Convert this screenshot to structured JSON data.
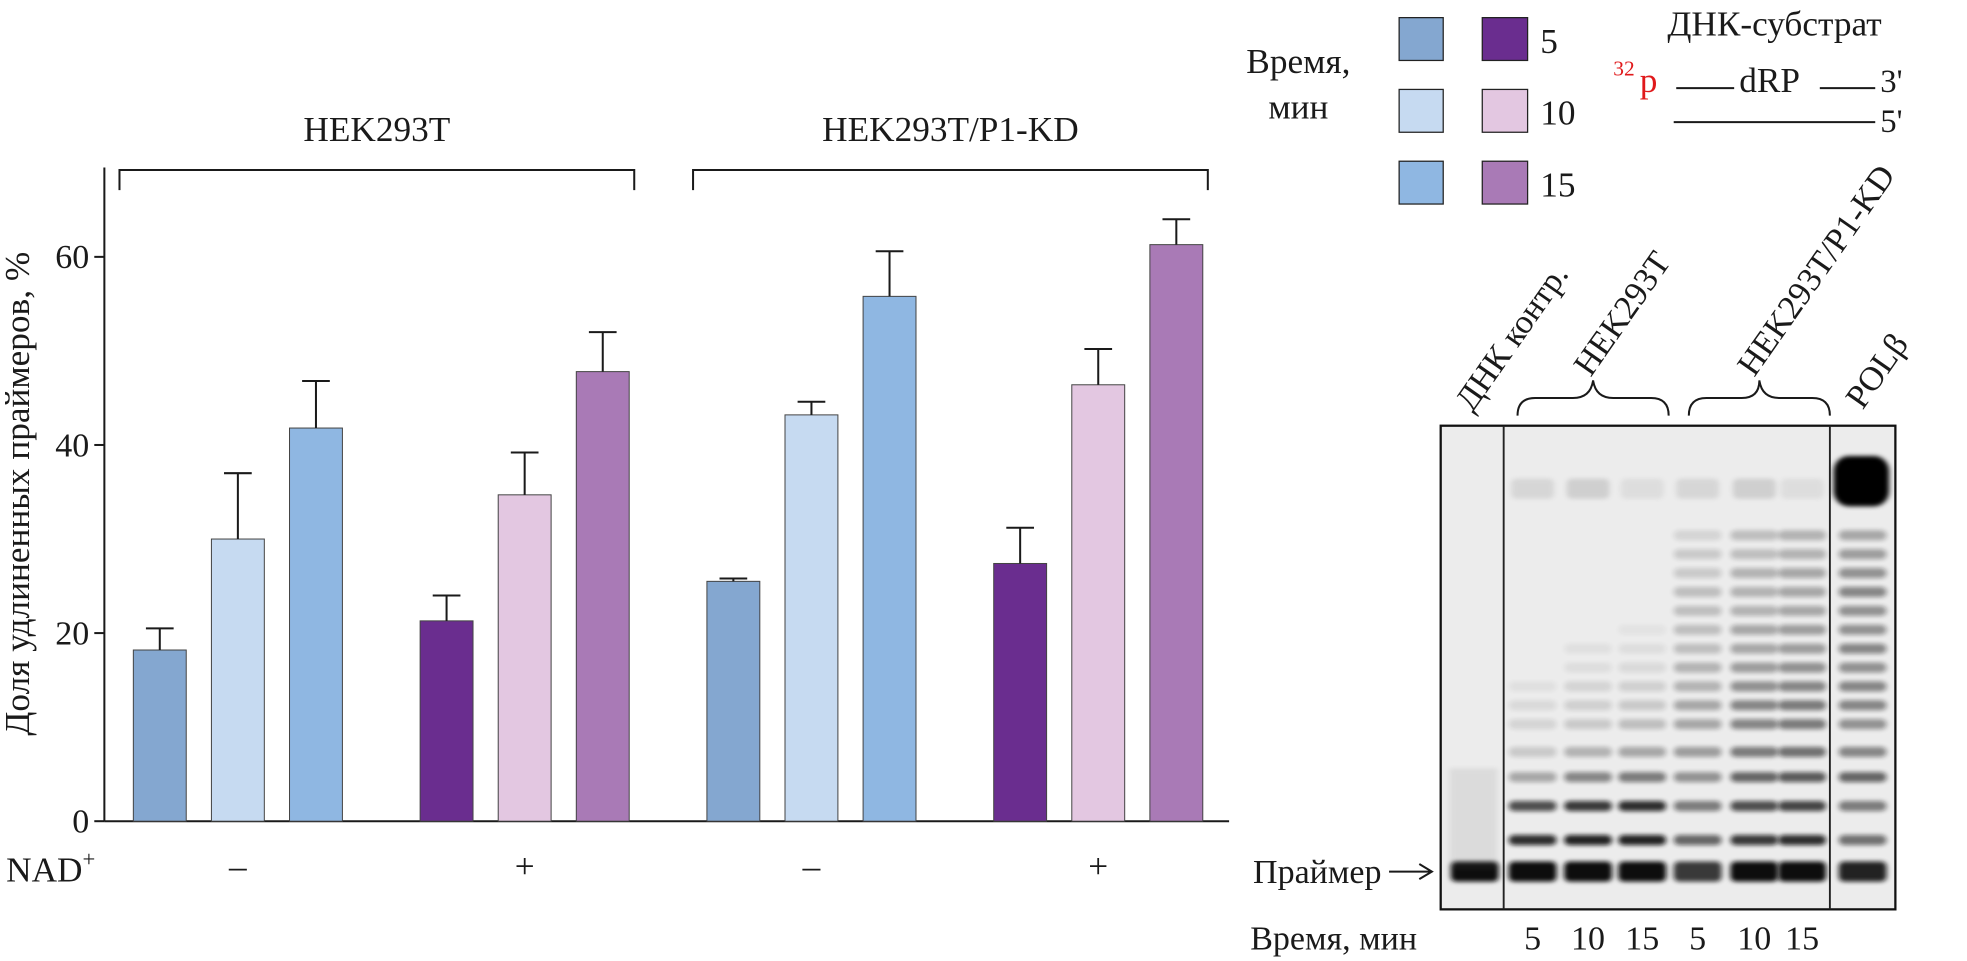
{
  "chart_data": {
    "type": "bar",
    "y_label": "Доля удлиненных праймеров, %",
    "x_row_label": "NAD",
    "x_row_label_sup": "+",
    "categories": [
      "–",
      "+",
      "–",
      "+"
    ],
    "groups": [
      {
        "label": "HEK293T",
        "span": [
          0,
          1
        ]
      },
      {
        "label": "HEK293T/P1-KD",
        "span": [
          2,
          3
        ]
      }
    ],
    "legend_title": [
      "Время,",
      "мин"
    ],
    "series": [
      {
        "name": "5",
        "colors": [
          "#84a7d0",
          "#6a2d8f",
          "#84a7d0",
          "#6a2d8f"
        ],
        "values": [
          18.2,
          21.3,
          25.5,
          27.4
        ],
        "errors": [
          2.3,
          2.7,
          0.3,
          3.8
        ]
      },
      {
        "name": "10",
        "colors": [
          "#c6daf1",
          "#e3c7e1",
          "#c6daf1",
          "#e3c7e1"
        ],
        "values": [
          30,
          34.7,
          43.2,
          46.4
        ],
        "errors": [
          7,
          4.5,
          1.4,
          3.8
        ]
      },
      {
        "name": "15",
        "colors": [
          "#8fb7e2",
          "#a97ab6",
          "#8fb7e2",
          "#a97ab6"
        ],
        "values": [
          41.8,
          47.8,
          55.8,
          61.3
        ],
        "errors": [
          5,
          4.2,
          4.8,
          2.7
        ]
      }
    ],
    "ylim": [
      0,
      69.5
    ],
    "yticks": [
      0,
      20,
      40,
      60
    ]
  },
  "gel": {
    "substrate_title": "ДНК-субстрат",
    "isotope": "32",
    "label_p": "p",
    "label_drp": "dRP",
    "end_3": "3'",
    "end_5": "5'",
    "lane_labels": [
      "ДНК контр.",
      "HEK293T",
      "HEK293T/P1-KD",
      "POLβ"
    ],
    "primer_label": "Праймер",
    "time_label": "Время, мин",
    "lane_times": [
      5,
      10,
      15,
      5,
      10,
      15
    ]
  }
}
